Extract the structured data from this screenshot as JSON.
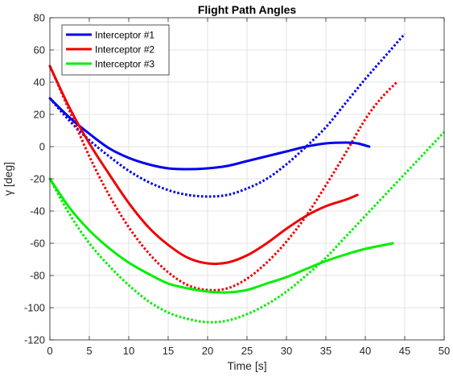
{
  "chart_data": {
    "type": "line",
    "title": "Flight Path Angles",
    "xlabel": "Time [s]",
    "ylabel": "γ [deg]",
    "xlim": [
      0,
      50
    ],
    "ylim": [
      -120,
      80
    ],
    "xticks": [
      0,
      5,
      10,
      15,
      20,
      25,
      30,
      35,
      40,
      45,
      50
    ],
    "yticks": [
      -120,
      -100,
      -80,
      -60,
      -40,
      -20,
      0,
      20,
      40,
      60,
      80
    ],
    "grid": true,
    "legend_position": "top-left",
    "series": [
      {
        "name": "Interceptor #1",
        "color": "#0000ee",
        "style": "solid",
        "x": [
          0,
          2.5,
          5,
          7.5,
          10,
          12.5,
          15,
          17.5,
          20,
          22.5,
          25,
          27.5,
          30,
          32.5,
          35,
          37.5,
          39,
          40.5
        ],
        "y": [
          30,
          18,
          8,
          -1,
          -7,
          -11,
          -13.5,
          -14,
          -13.5,
          -12,
          -9,
          -6,
          -3,
          0,
          2,
          2.5,
          2,
          0
        ]
      },
      {
        "name": "Interceptor #2",
        "color": "#ee0000",
        "style": "solid",
        "x": [
          0,
          2.5,
          5,
          7.5,
          10,
          12.5,
          15,
          17.5,
          20,
          22.5,
          25,
          27.5,
          30,
          32.5,
          35,
          37.5,
          39
        ],
        "y": [
          50,
          24,
          2,
          -17,
          -35,
          -50,
          -61,
          -69,
          -72.5,
          -72,
          -67.5,
          -60,
          -51,
          -43,
          -37,
          -33,
          -30
        ]
      },
      {
        "name": "Interceptor #3",
        "color": "#00ee00",
        "style": "solid",
        "x": [
          0,
          2.5,
          5,
          7.5,
          10,
          12.5,
          15,
          17.5,
          20,
          22.5,
          25,
          27.5,
          30,
          32.5,
          35,
          37.5,
          40,
          43.5
        ],
        "y": [
          -20,
          -38,
          -52,
          -63,
          -72,
          -79,
          -85,
          -88,
          -90,
          -90.5,
          -89,
          -85,
          -81,
          -76,
          -71,
          -67,
          -63.5,
          -60
        ]
      },
      {
        "name": "",
        "color": "#0000ee",
        "style": "dotted",
        "x": [
          0,
          2.5,
          5,
          7.5,
          10,
          12.5,
          15,
          17.5,
          20,
          22.5,
          25,
          27.5,
          30,
          32.5,
          35,
          37.5,
          40,
          42.5,
          45
        ],
        "y": [
          30,
          16,
          4,
          -6,
          -15,
          -22,
          -27,
          -30,
          -31,
          -30,
          -26,
          -20,
          -11,
          0,
          12,
          27,
          42,
          56,
          70
        ]
      },
      {
        "name": "",
        "color": "#ee0000",
        "style": "dotted",
        "x": [
          0,
          2.5,
          5,
          7.5,
          10,
          12.5,
          15,
          17.5,
          20,
          22.5,
          25,
          27.5,
          30,
          32.5,
          35,
          37.5,
          40,
          42,
          44
        ],
        "y": [
          50,
          22,
          -6,
          -30,
          -50,
          -66,
          -78,
          -86,
          -89,
          -88,
          -82,
          -72,
          -59,
          -43,
          -24,
          -4,
          17,
          30,
          40
        ]
      },
      {
        "name": "",
        "color": "#00ee00",
        "style": "dotted",
        "x": [
          0,
          2.5,
          5,
          7.5,
          10,
          12.5,
          15,
          17.5,
          20,
          22.5,
          25,
          27.5,
          30,
          32.5,
          35,
          37.5,
          40,
          42.5,
          45,
          47.5,
          50
        ],
        "y": [
          -20,
          -42,
          -60,
          -74,
          -86,
          -96,
          -103,
          -107,
          -109,
          -108,
          -104,
          -98,
          -90,
          -80,
          -69,
          -56,
          -43,
          -30,
          -17,
          -4,
          9
        ]
      }
    ]
  }
}
